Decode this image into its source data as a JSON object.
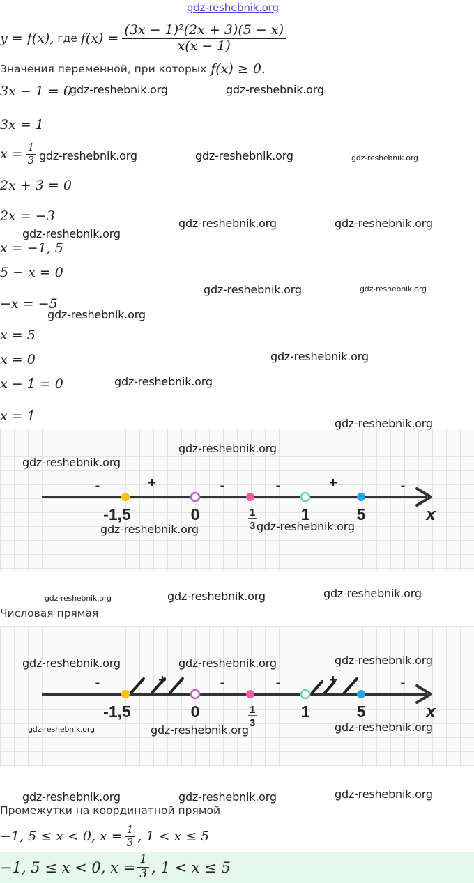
{
  "watermark": "gdz-reshebnik.org",
  "function_def": {
    "lhs": "y = f(x),",
    "word": "где",
    "fx": "f(x) =",
    "numerator": "(3x − 1)²(2x + 3)(5 − x)",
    "denominator": "x(x − 1)"
  },
  "condition": {
    "text": "Значения переменной, при которых",
    "math": "f(x)  ≥  0."
  },
  "steps": [
    "3x − 1 = 0",
    "3x = 1",
    "x =",
    "2x + 3 = 0",
    "2x = −3",
    "x = −1, 5",
    "5 − x = 0",
    "−x = −5",
    "x = 5",
    "x = 0",
    "x − 1 = 0",
    "x = 1"
  ],
  "one_third": {
    "num": "1",
    "den": "3"
  },
  "number_line": {
    "axis_label": "x",
    "points": [
      {
        "label": "-1,5",
        "color": "#f5c400",
        "filled": true
      },
      {
        "label": "0",
        "color": "#c25ed0",
        "filled": false
      },
      {
        "label": "1/3",
        "color": "#ee5aa8",
        "filled": true
      },
      {
        "label": "1",
        "color": "#68d99c",
        "filled": false
      },
      {
        "label": "5",
        "color": "#1fa6e8",
        "filled": true
      }
    ],
    "signs": [
      "-",
      "+",
      "-",
      "-",
      "+",
      "-"
    ]
  },
  "section_number_line": "Числовая прямая",
  "section_intervals": "Промежутки на координатной прямой",
  "answer": {
    "part1": "−1, 5  ≤  x  <  0, x =",
    "part2": ", 1  <  x  ≤  5"
  },
  "colors": {
    "accent_answer_bg": "#e6f8ec",
    "watermark_top": "#4a48d6",
    "axis": "#333333"
  }
}
